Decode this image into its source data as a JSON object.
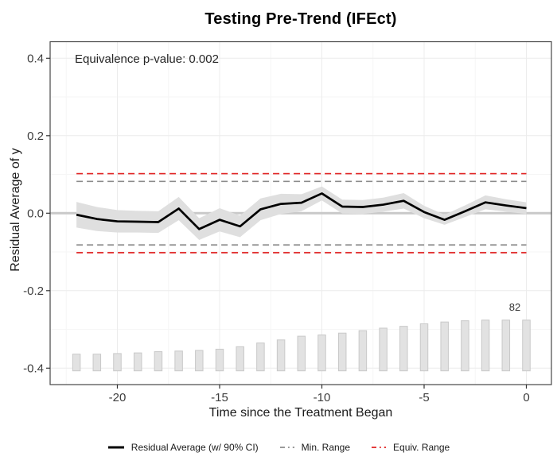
{
  "chart_data": {
    "type": "line",
    "title": "Testing Pre-Trend (IFEct)",
    "annotation": "Equivalence p-value: 0.002",
    "xlabel": "Time since the Treatment Began",
    "ylabel": "Residual Average of y",
    "xlim": [
      -23.3,
      1.2
    ],
    "ylim": [
      -0.443,
      0.443
    ],
    "grid": "on",
    "x_ticks": [
      {
        "value": -20,
        "label": "-20"
      },
      {
        "value": -15,
        "label": "-15"
      },
      {
        "value": -10,
        "label": "-10"
      },
      {
        "value": -5,
        "label": "-5"
      },
      {
        "value": 0,
        "label": "0"
      }
    ],
    "y_ticks": [
      {
        "value": 0.4,
        "label": "0.4"
      },
      {
        "value": 0.2,
        "label": "0.2"
      },
      {
        "value": 0.0,
        "label": "0.0"
      },
      {
        "value": -0.2,
        "label": "-0.2"
      },
      {
        "value": -0.4,
        "label": "-0.4"
      }
    ],
    "zero_line_value": 0,
    "min_range": 0.082,
    "equiv_range": 0.102,
    "series": {
      "name": "Residual Average (w/ 90% CI)",
      "x": [
        -22,
        -21,
        -20,
        -19,
        -18,
        -17,
        -16,
        -15,
        -14,
        -13,
        -12,
        -11,
        -10,
        -9,
        -8,
        -7,
        -6,
        -5,
        -4,
        -3,
        -2,
        -1,
        0
      ],
      "y": [
        -0.004,
        -0.015,
        -0.021,
        -0.022,
        -0.023,
        0.012,
        -0.041,
        -0.017,
        -0.034,
        0.01,
        0.024,
        0.027,
        0.051,
        0.017,
        0.016,
        0.022,
        0.032,
        0.003,
        -0.017,
        0.005,
        0.028,
        0.02,
        0.013
      ],
      "ci_halfwidth": [
        0.033,
        0.031,
        0.029,
        0.028,
        0.028,
        0.03,
        0.028,
        0.03,
        0.028,
        0.028,
        0.026,
        0.022,
        0.018,
        0.018,
        0.018,
        0.018,
        0.02,
        0.016,
        0.013,
        0.015,
        0.018,
        0.016,
        0.015
      ]
    },
    "bars": {
      "x": [
        -22,
        -21,
        -20,
        -19,
        -18,
        -17,
        -16,
        -15,
        -14,
        -13,
        -12,
        -11,
        -10,
        -9,
        -8,
        -7,
        -6,
        -5,
        -4,
        -3,
        -2,
        -1,
        0
      ],
      "counts": [
        27,
        27,
        28,
        29,
        31,
        32,
        33,
        35,
        39,
        45,
        50,
        56,
        58,
        61,
        65,
        69,
        72,
        76,
        79,
        81,
        82,
        82,
        82
      ],
      "max_count": 82,
      "max_count_label": "82",
      "baseline_value": -0.407,
      "max_top_value": -0.276
    },
    "legend": {
      "position": "bottom",
      "items": [
        {
          "label": "Residual Average (w/ 90% CI)",
          "color": "#000000",
          "dash": "solid"
        },
        {
          "label": "Min. Range",
          "color": "#8c8c8c",
          "dash": "dashed"
        },
        {
          "label": "Equiv. Range",
          "color": "#e02020",
          "dash": "dashed"
        }
      ]
    }
  },
  "colors": {
    "line": "#000000",
    "ribbon": "#dfdfdf",
    "bar_fill": "#e2e2e2",
    "bar_stroke": "#c9c9c9",
    "zero_line": "#c9c9c9",
    "grid_major": "#ececec",
    "grid_minor": "#f6f6f6",
    "panel_border": "#474747",
    "tick": "#333333",
    "axis_text": "#3d3d3d",
    "min_range_line": "#8c8c8c",
    "equiv_range_line": "#e02020"
  }
}
